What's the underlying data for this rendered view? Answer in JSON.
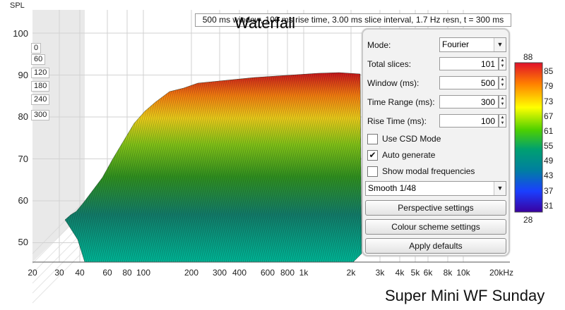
{
  "axis": {
    "y_label": "SPL",
    "y_ticks": [
      "100",
      "90",
      "80",
      "70",
      "60",
      "50"
    ],
    "x_ticks": [
      "20",
      "30",
      "40",
      "60",
      "80",
      "100",
      "200",
      "300",
      "400",
      "600",
      "800",
      "1k",
      "2k",
      "3k",
      "4k",
      "5k",
      "6k",
      "8k",
      "10k",
      "20kHz"
    ],
    "time_labels": [
      "0",
      "60",
      "120",
      "180",
      "240",
      "300"
    ]
  },
  "info_text": "500 ms window, 100 ms rise time, 3.00 ms slice interval, 1.7 Hz resn, t = 300 ms",
  "title": "Waterfall",
  "settings": {
    "mode_label": "Mode:",
    "mode_value": "Fourier",
    "slices_label": "Total slices:",
    "slices_value": "101",
    "window_label": "Window (ms):",
    "window_value": "500",
    "range_label": "Time Range (ms):",
    "range_value": "300",
    "rise_label": "Rise Time (ms):",
    "rise_value": "100",
    "csd_label": "Use CSD Mode",
    "csd_checked": false,
    "auto_label": "Auto generate",
    "auto_checked": true,
    "modal_label": "Show modal frequencies",
    "modal_checked": false,
    "smooth_value": "Smooth 1/48",
    "perspective_button": "Perspective settings",
    "colour_button": "Colour scheme settings",
    "defaults_button": "Apply defaults"
  },
  "colorbar": {
    "max_label": "88",
    "min_label": "28",
    "ticks": [
      "85",
      "79",
      "73",
      "67",
      "61",
      "55",
      "49",
      "43",
      "37",
      "31"
    ],
    "colors": [
      "#e0102a",
      "#ff7f00",
      "#ffff00",
      "#4dd000",
      "#00a070",
      "#007fa0",
      "#1a3fff",
      "#3a00a0"
    ]
  },
  "measurement_name": "Super Mini WF Sunday"
}
